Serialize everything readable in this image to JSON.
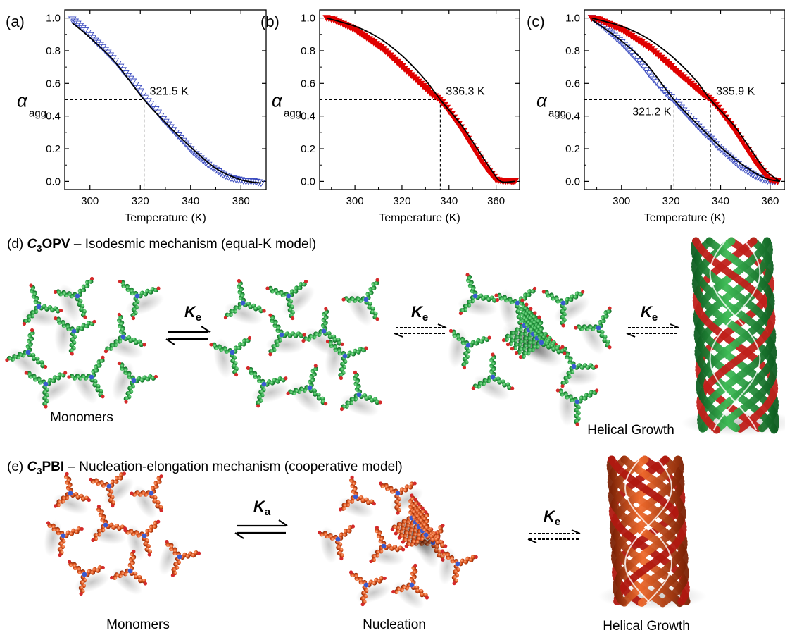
{
  "colors": {
    "series_blue": "#3a4bc0",
    "series_red": "#e00000",
    "fit_black": "#000000",
    "green_molecule": "#2fa84a",
    "orange_molecule": "#e0561f",
    "helix_red": "#c0201a"
  },
  "chart_data": [
    {
      "type": "scatter",
      "panel_label": "(a)",
      "xlabel": "Temperature (K)",
      "ylabel": "α",
      "ylabel_sub": "agg",
      "xlim": [
        290,
        370
      ],
      "ylim": [
        -0.05,
        1.05
      ],
      "xticks": [
        300,
        320,
        340,
        360
      ],
      "yticks": [
        0.0,
        0.2,
        0.4,
        0.6,
        0.8,
        1.0
      ],
      "xtick_labels": [
        "300",
        "320",
        "340",
        "360"
      ],
      "ytick_labels": [
        "0.0",
        "0.2",
        "0.4",
        "0.6",
        "0.8",
        "1.0"
      ],
      "series": [
        {
          "marker": "open-triangle-down",
          "color": "#3a4bc0",
          "x": [
            293,
            296,
            299,
            302,
            305,
            308,
            311,
            314,
            317,
            320,
            323,
            326,
            329,
            332,
            335,
            338,
            341,
            344,
            347,
            350,
            353,
            356,
            359,
            362,
            365,
            368
          ],
          "y": [
            0.99,
            0.95,
            0.91,
            0.86,
            0.82,
            0.77,
            0.72,
            0.66,
            0.61,
            0.55,
            0.49,
            0.44,
            0.38,
            0.33,
            0.28,
            0.23,
            0.18,
            0.14,
            0.1,
            0.07,
            0.04,
            0.02,
            0.01,
            0.0,
            0.0,
            -0.01
          ]
        }
      ],
      "fits": [
        {
          "color": "#000000",
          "x": [
            293,
            300,
            310,
            321.5,
            330,
            340,
            350,
            360,
            368
          ],
          "y": [
            0.97,
            0.88,
            0.73,
            0.5,
            0.36,
            0.21,
            0.08,
            0.01,
            -0.01
          ]
        }
      ],
      "markers": [
        {
          "x": 321.5,
          "y": 0.5,
          "label": "321.5 K",
          "label_pos": "right"
        }
      ]
    },
    {
      "type": "scatter",
      "panel_label": "(b)",
      "xlabel": "Temperature (K)",
      "ylabel": "α",
      "ylabel_sub": "agg",
      "xlim": [
        285,
        370
      ],
      "ylim": [
        -0.05,
        1.05
      ],
      "xticks": [
        300,
        320,
        340,
        360
      ],
      "yticks": [
        0.0,
        0.2,
        0.4,
        0.6,
        0.8,
        1.0
      ],
      "xtick_labels": [
        "300",
        "320",
        "340",
        "360"
      ],
      "ytick_labels": [
        "0.0",
        "0.2",
        "0.4",
        "0.6",
        "0.8",
        "1.0"
      ],
      "series": [
        {
          "marker": "filled-triangle-down",
          "color": "#e00000",
          "x": [
            288,
            291,
            294,
            297,
            300,
            303,
            306,
            309,
            312,
            315,
            318,
            321,
            324,
            327,
            330,
            333,
            336,
            339,
            342,
            345,
            348,
            351,
            354,
            357,
            360,
            363,
            366,
            368
          ],
          "y": [
            1.0,
            0.99,
            0.97,
            0.95,
            0.93,
            0.9,
            0.87,
            0.84,
            0.81,
            0.77,
            0.73,
            0.69,
            0.65,
            0.61,
            0.57,
            0.53,
            0.5,
            0.45,
            0.39,
            0.33,
            0.26,
            0.19,
            0.12,
            0.06,
            0.01,
            0.0,
            0.0,
            0.0
          ]
        }
      ],
      "fits": [
        {
          "color": "#000000",
          "x": [
            288,
            300,
            310,
            320,
            330,
            336.3,
            345,
            352,
            358,
            362,
            368
          ],
          "y": [
            1.0,
            0.95,
            0.88,
            0.77,
            0.62,
            0.5,
            0.35,
            0.2,
            0.07,
            0.0,
            0.0
          ]
        }
      ],
      "markers": [
        {
          "x": 336.3,
          "y": 0.5,
          "label": "336.3 K",
          "label_pos": "right"
        }
      ]
    },
    {
      "type": "scatter",
      "panel_label": "(c)",
      "xlabel": "Temperature (K)",
      "ylabel": "α",
      "ylabel_sub": "agg",
      "xlim": [
        285,
        366
      ],
      "ylim": [
        -0.05,
        1.05
      ],
      "xticks": [
        300,
        320,
        340,
        360
      ],
      "yticks": [
        0.0,
        0.2,
        0.4,
        0.6,
        0.8,
        1.0
      ],
      "xtick_labels": [
        "300",
        "320",
        "340",
        "360"
      ],
      "ytick_labels": [
        "0.0",
        "0.2",
        "0.4",
        "0.6",
        "0.8",
        "1.0"
      ],
      "series": [
        {
          "marker": "open-triangle-down",
          "color": "#3a4bc0",
          "x": [
            288,
            291,
            294,
            297,
            300,
            303,
            306,
            309,
            312,
            315,
            318,
            321,
            324,
            327,
            330,
            333,
            336,
            339,
            342,
            345,
            348,
            351,
            354,
            357,
            360,
            363
          ],
          "y": [
            1.0,
            0.97,
            0.93,
            0.89,
            0.85,
            0.8,
            0.75,
            0.7,
            0.64,
            0.59,
            0.54,
            0.5,
            0.45,
            0.4,
            0.35,
            0.3,
            0.26,
            0.21,
            0.17,
            0.13,
            0.09,
            0.06,
            0.03,
            0.01,
            0.0,
            0.0
          ]
        },
        {
          "marker": "filled-triangle-down",
          "color": "#e00000",
          "x": [
            288,
            291,
            294,
            297,
            300,
            303,
            306,
            309,
            312,
            315,
            318,
            321,
            324,
            327,
            330,
            333,
            336,
            339,
            342,
            345,
            348,
            351,
            354,
            357,
            360,
            363
          ],
          "y": [
            1.0,
            0.99,
            0.97,
            0.95,
            0.93,
            0.9,
            0.87,
            0.84,
            0.81,
            0.77,
            0.73,
            0.69,
            0.65,
            0.61,
            0.57,
            0.53,
            0.5,
            0.45,
            0.39,
            0.33,
            0.26,
            0.19,
            0.12,
            0.06,
            0.01,
            0.0
          ]
        }
      ],
      "fits": [
        {
          "color": "#000000",
          "x": [
            288,
            300,
            310,
            321.2,
            330,
            340,
            350,
            358,
            364
          ],
          "y": [
            0.99,
            0.86,
            0.72,
            0.5,
            0.36,
            0.21,
            0.09,
            0.02,
            0.0
          ]
        },
        {
          "color": "#000000",
          "x": [
            288,
            300,
            310,
            320,
            330,
            335.9,
            345,
            352,
            358,
            364
          ],
          "y": [
            1.0,
            0.95,
            0.88,
            0.77,
            0.62,
            0.5,
            0.35,
            0.2,
            0.07,
            0.0
          ]
        }
      ],
      "markers": [
        {
          "x": 321.2,
          "y": 0.5,
          "label": "321.2 K",
          "label_pos": "below-left"
        },
        {
          "x": 335.9,
          "y": 0.5,
          "label": "335.9 K",
          "label_pos": "right"
        }
      ]
    }
  ],
  "schemes": {
    "d": {
      "label_prefix": "(d) ",
      "compound_c": "C",
      "compound_sub": "3",
      "compound_name": "OPV",
      "description": " – Isodesmic mechanism (equal-K model)",
      "constants": [
        {
          "symbol": "K",
          "sub": "e"
        },
        {
          "symbol": "K",
          "sub": "e"
        },
        {
          "symbol": "K",
          "sub": "e"
        }
      ],
      "stage_labels": [
        "Monomers",
        "Helical Growth"
      ]
    },
    "e": {
      "label_prefix": "(e) ",
      "compound_c": "C",
      "compound_sub": "3",
      "compound_name": "PBI",
      "description": " – Nucleation-elongation mechanism (cooperative model)",
      "constants": [
        {
          "symbol": "K",
          "sub": "a"
        },
        {
          "symbol": "K",
          "sub": "e"
        }
      ],
      "stage_labels": [
        "Monomers",
        "Nucleation",
        "Helical Growth"
      ]
    }
  }
}
